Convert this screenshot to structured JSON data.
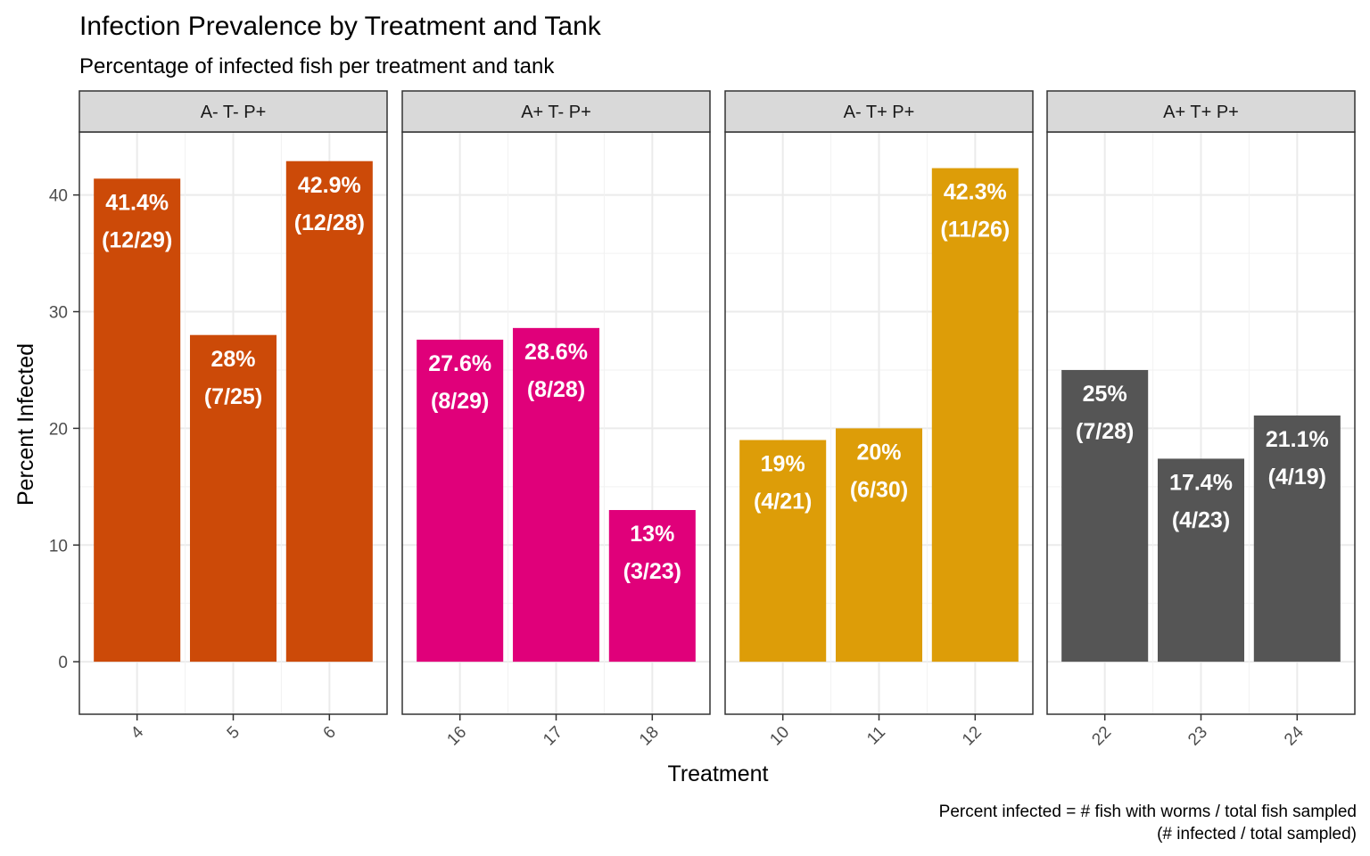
{
  "chart_data": {
    "type": "bar",
    "title": "Infection Prevalence by Treatment and Tank",
    "subtitle": "Percentage of infected fish per treatment and tank",
    "xlabel": "Treatment",
    "ylabel": "Percent Infected",
    "caption_lines": [
      "Percent infected = # fish with worms / total fish sampled",
      "(# infected / total sampled)"
    ],
    "ylim": [
      -4.5,
      45.4
    ],
    "yticks": [
      0,
      10,
      20,
      30,
      40
    ],
    "grid": true,
    "legend": "none",
    "facets": [
      {
        "name": "A- T- P+",
        "color": "#CC4A08",
        "categories": [
          "4",
          "5",
          "6"
        ],
        "values": [
          41.4,
          28,
          42.9
        ],
        "percent_labels": [
          "41.4%",
          "28%",
          "42.9%"
        ],
        "count_labels": [
          "(12/29)",
          "(7/25)",
          "(12/28)"
        ]
      },
      {
        "name": "A+ T- P+",
        "color": "#E0007A",
        "categories": [
          "16",
          "17",
          "18"
        ],
        "values": [
          27.6,
          28.6,
          13
        ],
        "percent_labels": [
          "27.6%",
          "28.6%",
          "13%"
        ],
        "count_labels": [
          "(8/29)",
          "(8/28)",
          "(3/23)"
        ]
      },
      {
        "name": "A- T+ P+",
        "color": "#DD9D08",
        "categories": [
          "10",
          "11",
          "12"
        ],
        "values": [
          19,
          20,
          42.3
        ],
        "percent_labels": [
          "19%",
          "20%",
          "42.3%"
        ],
        "count_labels": [
          "(4/21)",
          "(6/30)",
          "(11/26)"
        ]
      },
      {
        "name": "A+ T+ P+",
        "color": "#555555",
        "categories": [
          "22",
          "23",
          "24"
        ],
        "values": [
          25,
          17.4,
          21.1
        ],
        "percent_labels": [
          "25%",
          "17.4%",
          "21.1%"
        ],
        "count_labels": [
          "(7/28)",
          "(4/23)",
          "(4/19)"
        ]
      }
    ]
  }
}
